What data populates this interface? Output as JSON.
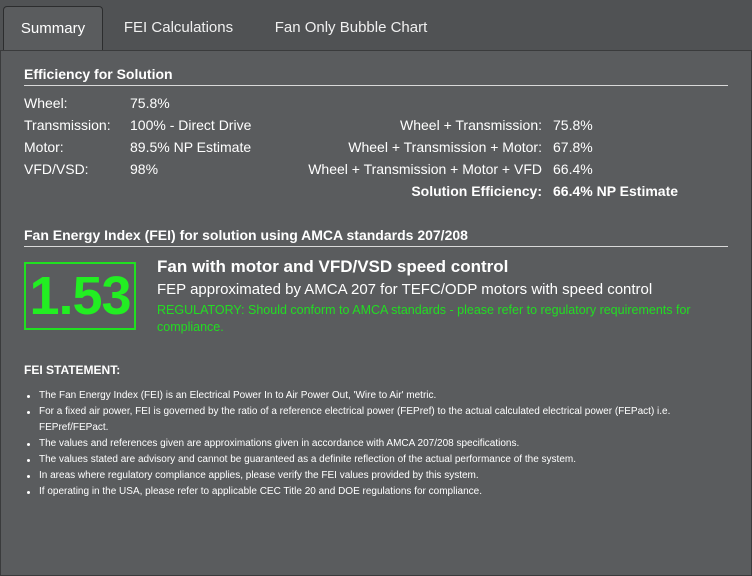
{
  "tabs": [
    {
      "label": "Summary",
      "active": true
    },
    {
      "label": "FEI Calculations",
      "active": false
    },
    {
      "label": "Fan Only Bubble Chart",
      "active": false
    }
  ],
  "efficiency": {
    "title": "Efficiency for Solution",
    "left": [
      {
        "label": "Wheel:",
        "value": "75.8%"
      },
      {
        "label": "Transmission:",
        "value": "100% - Direct Drive"
      },
      {
        "label": "Motor:",
        "value": "89.5% NP Estimate"
      },
      {
        "label": "VFD/VSD:",
        "value": "98%"
      }
    ],
    "right": [
      {
        "label": "Wheel + Transmission:",
        "value": "75.8%"
      },
      {
        "label": "Wheel + Transmission + Motor:",
        "value": "67.8%"
      },
      {
        "label": "Wheel + Transmission + Motor + VFD",
        "value": "66.4%"
      }
    ],
    "solution": {
      "label": "Solution Efficiency:",
      "value": "66.4% NP Estimate"
    }
  },
  "fei": {
    "title": "Fan Energy Index (FEI) for solution using AMCA standards 207/208",
    "value": "1.53",
    "color": "#22ee22",
    "heading": "Fan with motor and VFD/VSD speed control",
    "fep": "FEP approximated by AMCA 207 for TEFC/ODP motors with speed control",
    "regulatory": "REGULATORY: Should conform to AMCA standards - please refer to regulatory requirements for compliance."
  },
  "statement": {
    "title": "FEI STATEMENT:",
    "items": [
      "The Fan Energy Index (FEI) is an Electrical Power In to Air Power Out, 'Wire to Air' metric.",
      "For a fixed air power, FEI is governed by the ratio of a reference electrical power (FEPref) to the actual calculated electrical power (FEPact) i.e. FEPref/FEPact.",
      "The values and references given are approximations given in accordance with AMCA 207/208 specifications.",
      "The values stated are advisory and cannot be guaranteed as a definite reflection of the actual performance of the system.",
      "In areas where regulatory compliance applies, please verify the FEI values provided by this system.",
      "If operating in the USA, please refer to applicable CEC Title 20 and DOE regulations for compliance."
    ]
  }
}
